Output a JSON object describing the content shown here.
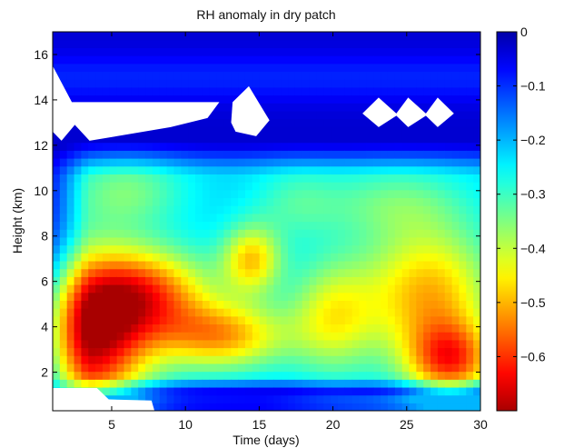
{
  "chart_data": {
    "type": "heatmap",
    "title": "RH anomaly in dry patch",
    "xlabel": "Time (days)",
    "ylabel": "Height (km)",
    "xlim": [
      1,
      30
    ],
    "ylim": [
      0.3,
      17
    ],
    "xticks": [
      5,
      10,
      15,
      20,
      25,
      30
    ],
    "yticks": [
      2,
      4,
      6,
      8,
      10,
      12,
      14,
      16
    ],
    "colorbar": {
      "min": -0.7,
      "max": 0,
      "ticks": [
        "0",
        "−0.1",
        "−0.2",
        "−0.3",
        "−0.4",
        "−0.5",
        "−0.6"
      ],
      "tick_values": [
        0,
        -0.1,
        -0.2,
        -0.3,
        -0.4,
        -0.5,
        -0.6
      ],
      "colormap": "jet_reversed"
    },
    "features": [
      {
        "x": 3.5,
        "y": 3.5,
        "sx": 4.0,
        "sy": 3.5,
        "amp": -0.45
      },
      {
        "x": 7.5,
        "y": 5.5,
        "sx": 4.5,
        "sy": 2.0,
        "amp": -0.3
      },
      {
        "x": 14.5,
        "y": 7.0,
        "sx": 2.0,
        "sy": 1.5,
        "amp": -0.25
      },
      {
        "x": 12.5,
        "y": 3.6,
        "sx": 4.5,
        "sy": 1.5,
        "amp": -0.28
      },
      {
        "x": 20.0,
        "y": 4.5,
        "sx": 3.0,
        "sy": 2.5,
        "amp": -0.2
      },
      {
        "x": 26.5,
        "y": 5.5,
        "sx": 4.5,
        "sy": 3.0,
        "amp": -0.28
      },
      {
        "x": 28.0,
        "y": 2.5,
        "sx": 3.0,
        "sy": 1.7,
        "amp": -0.32
      },
      {
        "x": 6.0,
        "y": 10.0,
        "sx": 4.0,
        "sy": 1.6,
        "amp": -0.12
      },
      {
        "x": 24.0,
        "y": 9.5,
        "sx": 5.0,
        "sy": 1.6,
        "amp": -0.1
      },
      {
        "x": 17.5,
        "y": 9.5,
        "sx": 3.0,
        "sy": 1.6,
        "amp": -0.08
      }
    ],
    "missing_regions": [
      [
        [
          1,
          15.5
        ],
        [
          2.3,
          13.9
        ],
        [
          12.3,
          13.9
        ],
        [
          11.5,
          13.2
        ],
        [
          9,
          12.8
        ],
        [
          3.5,
          12.2
        ],
        [
          2.5,
          12.9
        ],
        [
          1.6,
          12.2
        ],
        [
          1,
          12.6
        ]
      ],
      [
        [
          13.2,
          13.9
        ],
        [
          14.3,
          14.6
        ],
        [
          15.7,
          13.1
        ],
        [
          14.8,
          12.4
        ],
        [
          13.4,
          12.6
        ],
        [
          13.1,
          13.0
        ]
      ],
      [
        [
          22,
          13.4
        ],
        [
          23.1,
          14.1
        ],
        [
          24.3,
          13.4
        ],
        [
          25.1,
          14.1
        ],
        [
          26.3,
          13.4
        ],
        [
          27.1,
          14.1
        ],
        [
          28.2,
          13.4
        ],
        [
          27.1,
          12.8
        ],
        [
          26.3,
          13.3
        ],
        [
          25.1,
          12.8
        ],
        [
          24.3,
          13.3
        ],
        [
          23.1,
          12.8
        ]
      ],
      [
        [
          1,
          1.3
        ],
        [
          4,
          1.3
        ],
        [
          4.8,
          0.8
        ],
        [
          7.7,
          0.75
        ],
        [
          7.9,
          0.3
        ],
        [
          1,
          0.3
        ]
      ]
    ]
  }
}
